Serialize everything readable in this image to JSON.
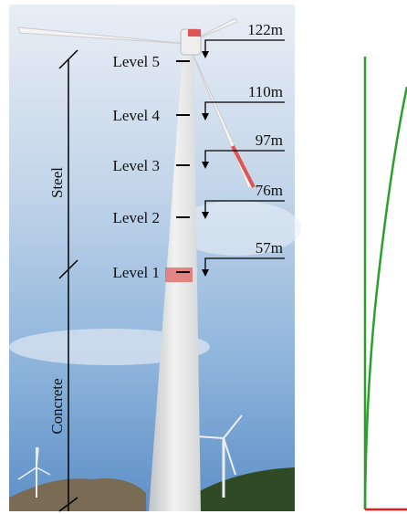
{
  "levels": [
    {
      "label": "Level 5",
      "height": "122m"
    },
    {
      "label": "Level 4",
      "height": "110m"
    },
    {
      "label": "Level 3",
      "height": "97m"
    },
    {
      "label": "Level 2",
      "height": "76m"
    },
    {
      "label": "Level 1",
      "height": "57m"
    }
  ],
  "sections": {
    "upper": "Steel",
    "lower": "Concrete"
  }
}
